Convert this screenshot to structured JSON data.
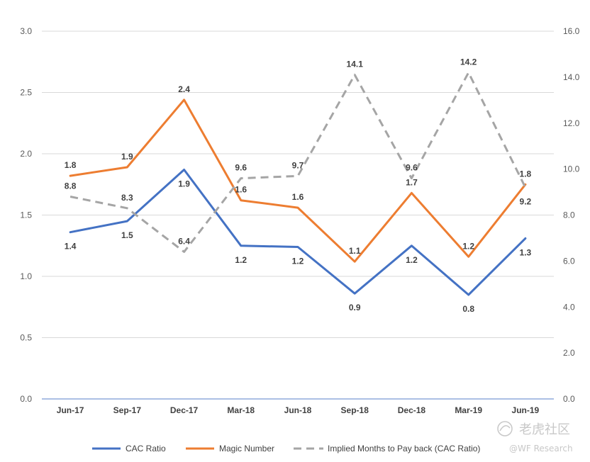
{
  "chart_data": {
    "type": "line",
    "categories": [
      "Jun-17",
      "Sep-17",
      "Dec-17",
      "Mar-18",
      "Jun-18",
      "Sep-18",
      "Dec-18",
      "Mar-19",
      "Jun-19"
    ],
    "y_left": {
      "min": 0,
      "max": 3.0,
      "ticks": [
        "0.0",
        "0.5",
        "1.0",
        "1.5",
        "2.0",
        "2.5",
        "3.0"
      ]
    },
    "y_right": {
      "min": 0,
      "max": 16.0,
      "ticks": [
        "0.0",
        "2.0",
        "4.0",
        "6.0",
        "8.0",
        "10.0",
        "12.0",
        "14.0",
        "16.0"
      ]
    },
    "grid": true,
    "legend_position": "bottom",
    "series": [
      {
        "name": "CAC Ratio",
        "axis": "left",
        "color": "#4472C4",
        "style": "solid",
        "values": [
          1.36,
          1.45,
          1.87,
          1.25,
          1.24,
          0.86,
          1.25,
          0.85,
          1.31
        ],
        "labels": [
          "1.4",
          "1.5",
          "1.9",
          "1.2",
          "1.2",
          "0.9",
          "1.2",
          "0.8",
          "1.3"
        ],
        "label_side": [
          "below",
          "below",
          "below",
          "below",
          "below",
          "below",
          "below",
          "below",
          "below"
        ]
      },
      {
        "name": "Magic Number",
        "axis": "left",
        "color": "#ED7D31",
        "style": "solid",
        "values": [
          1.82,
          1.89,
          2.44,
          1.62,
          1.56,
          1.12,
          1.68,
          1.16,
          1.75
        ],
        "labels": [
          "1.8",
          "1.9",
          "2.4",
          "1.6",
          "1.6",
          "1.1",
          "1.7",
          "1.2",
          "1.8"
        ],
        "label_side": [
          "above",
          "above",
          "above",
          "above",
          "above",
          "above",
          "above",
          "above",
          "above"
        ]
      },
      {
        "name": "Implied Months to Pay back (CAC Ratio)",
        "axis": "right",
        "color": "#A5A5A5",
        "style": "dashed",
        "values": [
          8.8,
          8.3,
          6.4,
          9.6,
          9.7,
          14.1,
          9.6,
          14.2,
          9.2
        ],
        "labels": [
          "8.8",
          "8.3",
          "6.4",
          "9.6",
          "9.7",
          "14.1",
          "9.6",
          "14.2",
          "9.2"
        ],
        "label_side": [
          "above",
          "above",
          "above",
          "above",
          "above",
          "above",
          "above",
          "above",
          "below"
        ]
      }
    ]
  },
  "watermark": {
    "brand": "老虎社区",
    "source": "@WF Research"
  }
}
